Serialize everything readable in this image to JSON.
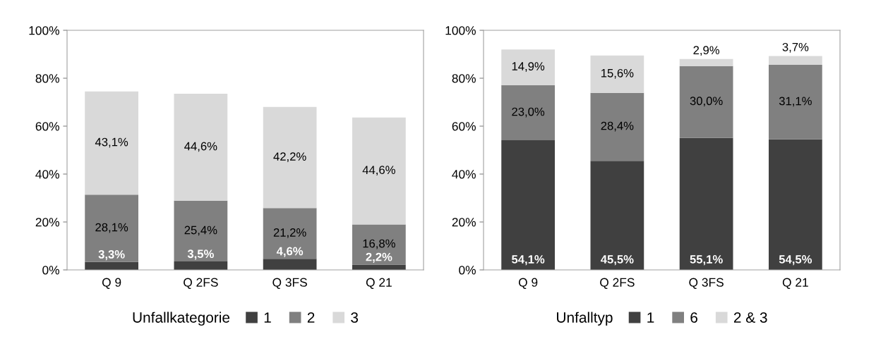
{
  "chart_data": [
    {
      "type": "bar",
      "stacked": true,
      "categories": [
        "Q 9",
        "Q 2FS",
        "Q 3FS",
        "Q 21"
      ],
      "legend_title": "Unfallkategorie",
      "legend": "bottom",
      "grid": false,
      "ylim": [
        0,
        100
      ],
      "yticks": [
        {
          "value": 0,
          "label": "0%"
        },
        {
          "value": 20,
          "label": "20%"
        },
        {
          "value": 40,
          "label": "40%"
        },
        {
          "value": 60,
          "label": "60%"
        },
        {
          "value": 80,
          "label": "80%"
        },
        {
          "value": 100,
          "label": "100%"
        }
      ],
      "series": [
        {
          "name": "1",
          "color": "#404040",
          "values": [
            3.3,
            3.5,
            4.6,
            2.2
          ],
          "value_labels": [
            "3,3%",
            "3,5%",
            "4,6%",
            "2,2%"
          ]
        },
        {
          "name": "2",
          "color": "#808080",
          "values": [
            28.1,
            25.4,
            21.2,
            16.8
          ],
          "value_labels": [
            "28,1%",
            "25,4%",
            "21,2%",
            "16,8%"
          ]
        },
        {
          "name": "3",
          "color": "#d9d9d9",
          "values": [
            43.1,
            44.6,
            42.2,
            44.6
          ],
          "value_labels": [
            "43,1%",
            "44,6%",
            "42,2%",
            "44,6%"
          ]
        }
      ]
    },
    {
      "type": "bar",
      "stacked": true,
      "categories": [
        "Q 9",
        "Q 2FS",
        "Q 3FS",
        "Q 21"
      ],
      "legend_title": "Unfalltyp",
      "legend": "bottom",
      "grid": false,
      "ylim": [
        0,
        100
      ],
      "yticks": [
        {
          "value": 0,
          "label": "0%"
        },
        {
          "value": 20,
          "label": "20%"
        },
        {
          "value": 40,
          "label": "40%"
        },
        {
          "value": 60,
          "label": "60%"
        },
        {
          "value": 80,
          "label": "80%"
        },
        {
          "value": 100,
          "label": "100%"
        }
      ],
      "series": [
        {
          "name": "1",
          "color": "#404040",
          "values": [
            54.1,
            45.5,
            55.1,
            54.5
          ],
          "value_labels": [
            "54,1%",
            "45,5%",
            "55,1%",
            "54,5%"
          ]
        },
        {
          "name": "6",
          "color": "#808080",
          "values": [
            23.0,
            28.4,
            30.0,
            31.1
          ],
          "value_labels": [
            "23,0%",
            "28,4%",
            "30,0%",
            "31,1%"
          ]
        },
        {
          "name": "2 & 3",
          "color": "#d9d9d9",
          "values": [
            14.9,
            15.6,
            2.9,
            3.7
          ],
          "value_labels": [
            "14,9%",
            "15,6%",
            "2,9%",
            "3,7%"
          ]
        }
      ]
    }
  ]
}
